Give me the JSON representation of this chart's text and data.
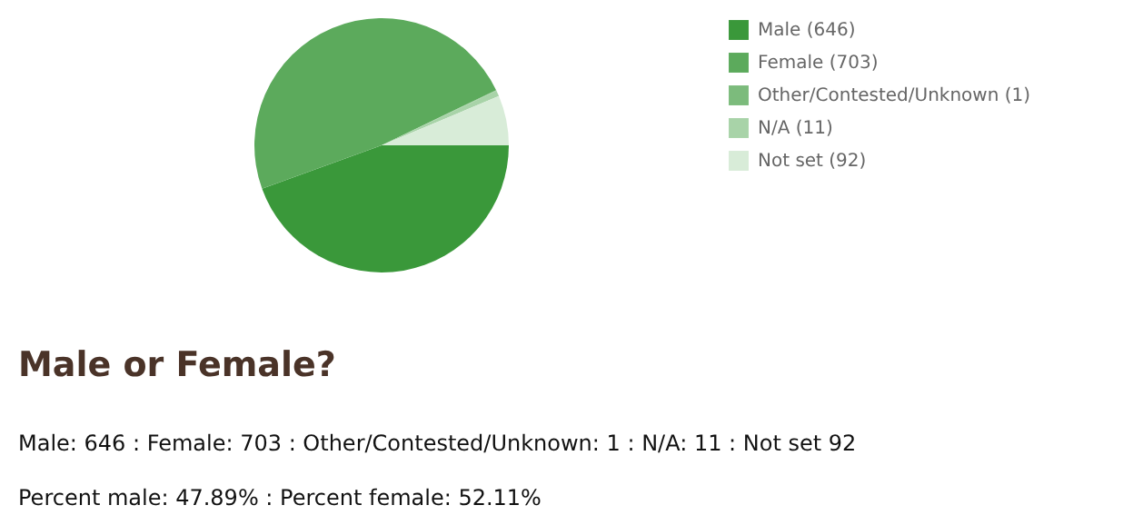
{
  "chart_data": {
    "type": "pie",
    "title": "Male or Female?",
    "categories": [
      "Male (646)",
      "Female (703)",
      "Other/Contested/Unknown (1)",
      "N/A (11)",
      "Not set (92)"
    ],
    "values": [
      646,
      703,
      1,
      11,
      92
    ],
    "colors": [
      "#3a983a",
      "#5caa5c",
      "#7cbb7c",
      "#a8d3a8",
      "#d8ecd8"
    ],
    "legend": "right",
    "annotations": [
      "Male: 646 : Female: 703 : Other/Contested/Unknown: 1 : N/A: 11 : Not set 92",
      "Percent male: 47.89% : Percent female: 52.11%"
    ]
  }
}
